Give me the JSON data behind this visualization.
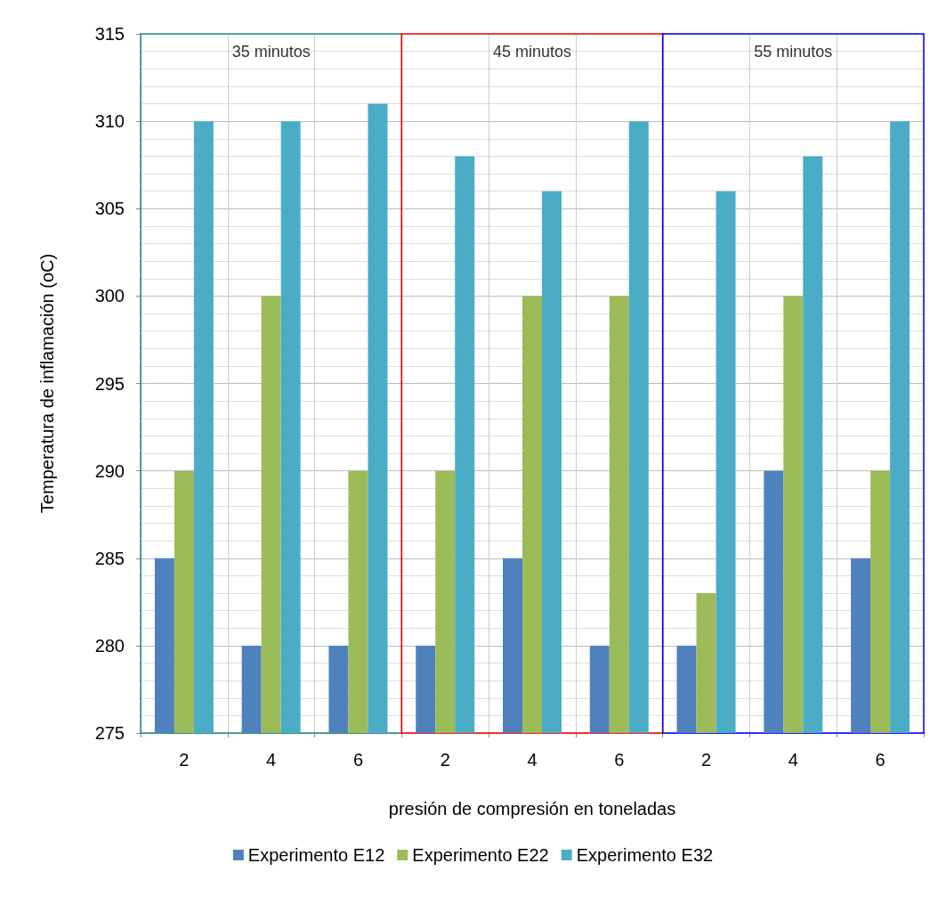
{
  "chart_data": {
    "type": "bar",
    "xlabel": "presión de compresión en toneladas",
    "ylabel": "Temperatura de inflamación (oC)",
    "categories": [
      "2",
      "4",
      "6",
      "2",
      "4",
      "6",
      "2",
      "4",
      "6"
    ],
    "series": [
      {
        "name": "Experimento E12",
        "color": "#4f81bd",
        "values": [
          285,
          280,
          280,
          280,
          285,
          280,
          280,
          290,
          285
        ]
      },
      {
        "name": "Experimento E22",
        "color": "#9bbb59",
        "values": [
          290,
          300,
          290,
          290,
          300,
          300,
          283,
          300,
          290
        ]
      },
      {
        "name": "Experimento E32",
        "color": "#4bacc6",
        "values": [
          310,
          310,
          311,
          308,
          306,
          310,
          306,
          308,
          310
        ]
      }
    ],
    "ylim": [
      275,
      315
    ],
    "yticks": [
      275,
      280,
      285,
      290,
      295,
      300,
      305,
      310,
      315
    ],
    "annotations": [
      "35 minutos",
      "45 minutos",
      "55 minutos"
    ],
    "grid": true,
    "legend": "bottom"
  }
}
